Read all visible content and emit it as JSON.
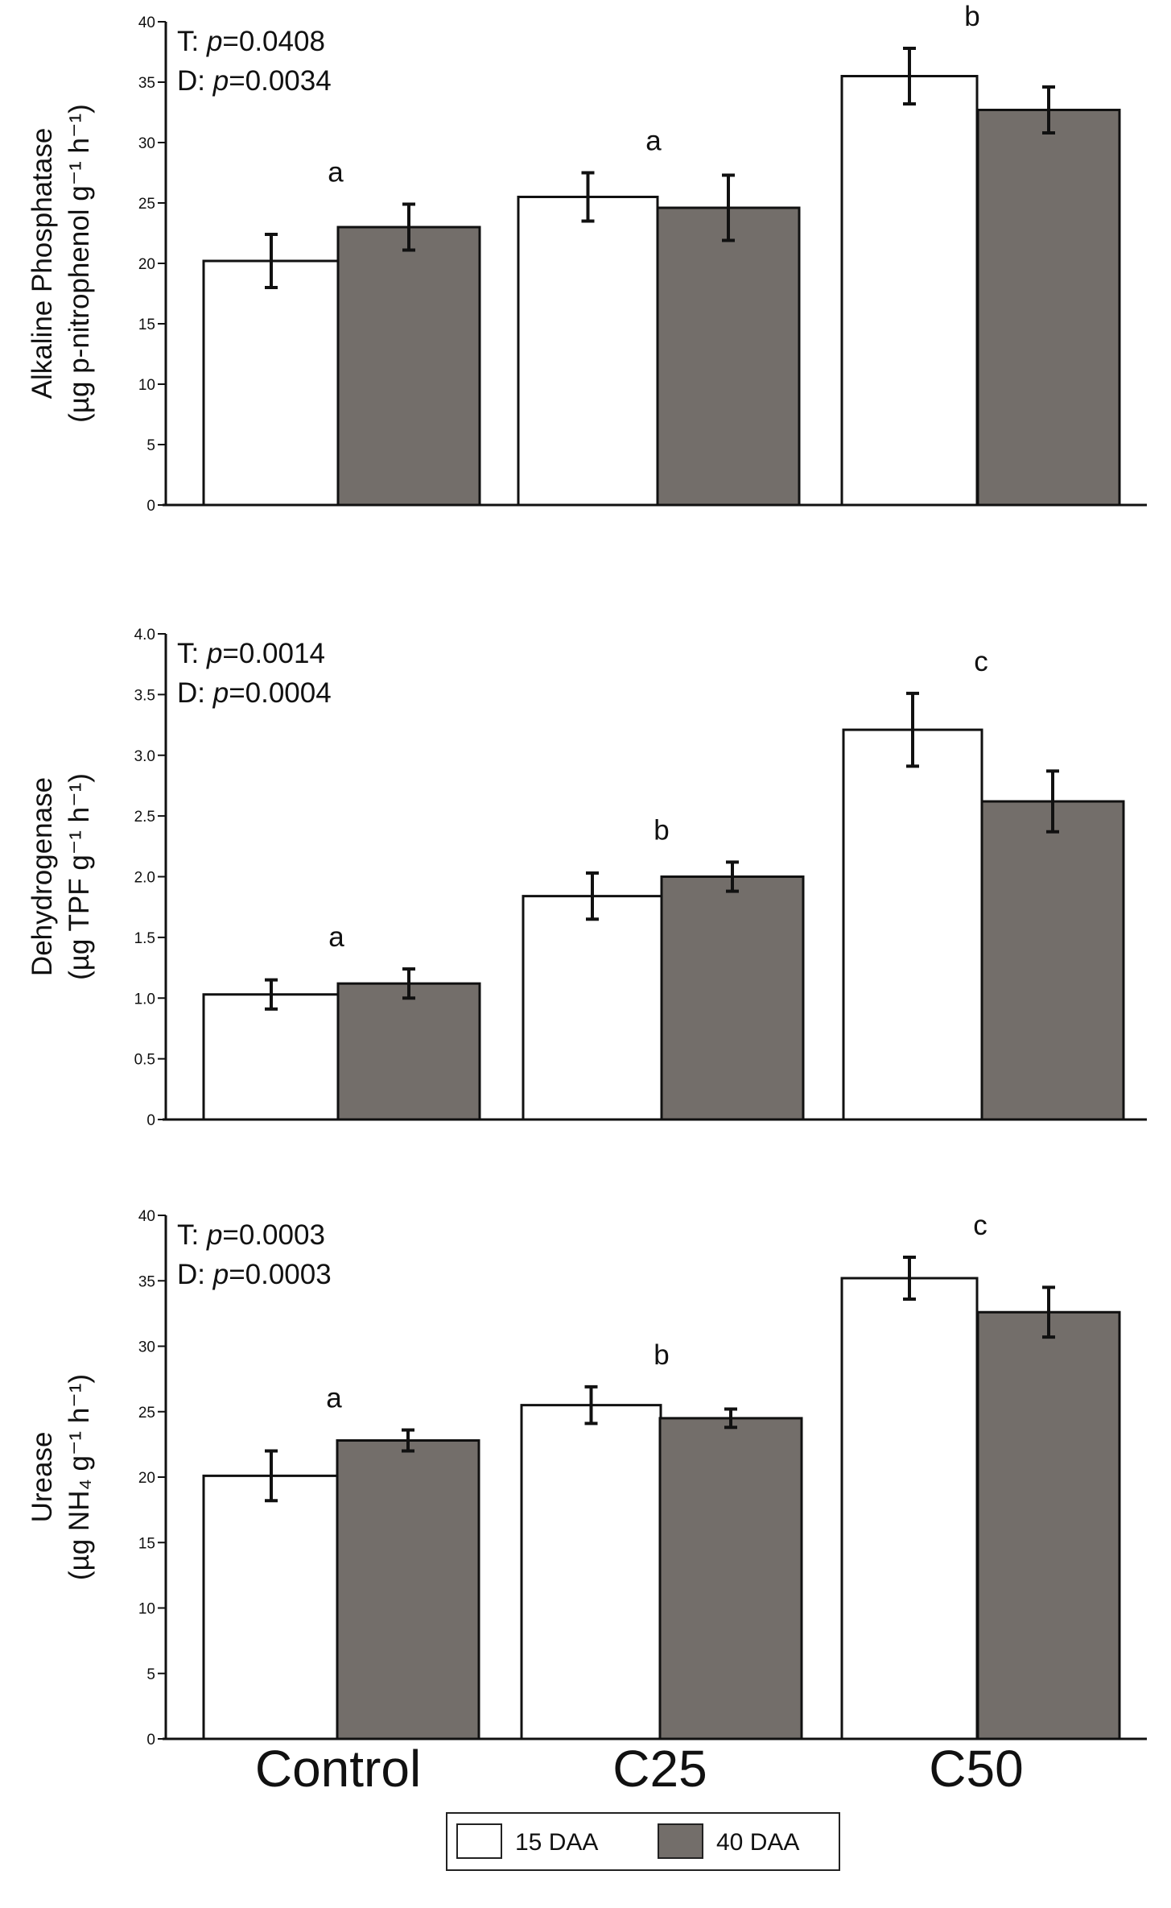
{
  "legend": [
    {
      "label": "15 DAA",
      "color": "#ffffff"
    },
    {
      "label": "40 DAA",
      "color": "#736e6a"
    }
  ],
  "categories": [
    "Control",
    "C25",
    "C50"
  ],
  "chart_data": [
    {
      "type": "bar",
      "title": "",
      "ylabel_line1": "Alkaline Phosphatase",
      "ylabel_line2": "(µg p-nitrophenol g⁻¹ h⁻¹)",
      "categories": [
        "Control",
        "C25",
        "C50"
      ],
      "ylim": [
        0,
        40
      ],
      "yticks": [
        0,
        5,
        10,
        15,
        20,
        25,
        30,
        35,
        40
      ],
      "ytick_labels": [
        "0",
        "5",
        "10",
        "15",
        "20",
        "25",
        "30",
        "35",
        "40"
      ],
      "series": [
        {
          "name": "15 DAA",
          "values": [
            20.2,
            25.5,
            35.5
          ],
          "errors": [
            2.2,
            2.0,
            2.3
          ]
        },
        {
          "name": "40 DAA",
          "values": [
            23.0,
            24.6,
            32.7
          ],
          "errors": [
            1.9,
            2.7,
            1.9
          ]
        }
      ],
      "letters": [
        "a",
        "a",
        "b"
      ],
      "stats": [
        {
          "factor": "T",
          "p": "0.0408"
        },
        {
          "factor": "D",
          "p": "0.0034"
        }
      ]
    },
    {
      "type": "bar",
      "title": "",
      "ylabel_line1": "Dehydrogenase",
      "ylabel_line2": "(µg TPF g⁻¹ h⁻¹)",
      "categories": [
        "Control",
        "C25",
        "C50"
      ],
      "ylim": [
        0,
        4.0
      ],
      "yticks": [
        0,
        0.5,
        1.0,
        1.5,
        2.0,
        2.5,
        3.0,
        3.5,
        4.0
      ],
      "ytick_labels": [
        "0",
        "0.5",
        "1.0",
        "1.5",
        "2.0",
        "2.5",
        "3.0",
        "3.5",
        "4.0"
      ],
      "series": [
        {
          "name": "15 DAA",
          "values": [
            1.03,
            1.84,
            3.21
          ],
          "errors": [
            0.12,
            0.19,
            0.3
          ]
        },
        {
          "name": "40 DAA",
          "values": [
            1.12,
            2.0,
            2.62
          ],
          "errors": [
            0.12,
            0.12,
            0.25
          ]
        }
      ],
      "letters": [
        "a",
        "b",
        "c"
      ],
      "stats": [
        {
          "factor": "T",
          "p": "0.0014"
        },
        {
          "factor": "D",
          "p": "0.0004"
        }
      ]
    },
    {
      "type": "bar",
      "title": "",
      "ylabel_line1": "Urease",
      "ylabel_line2": "(µg NH₄ g⁻¹ h⁻¹)",
      "categories": [
        "Control",
        "C25",
        "C50"
      ],
      "ylim": [
        0,
        40
      ],
      "yticks": [
        0,
        5,
        10,
        15,
        20,
        25,
        30,
        35,
        40
      ],
      "ytick_labels": [
        "0",
        "5",
        "10",
        "15",
        "20",
        "25",
        "30",
        "35",
        "40"
      ],
      "series": [
        {
          "name": "15 DAA",
          "values": [
            20.1,
            25.5,
            35.2
          ],
          "errors": [
            1.9,
            1.4,
            1.6
          ]
        },
        {
          "name": "40 DAA",
          "values": [
            22.8,
            24.5,
            32.6
          ],
          "errors": [
            0.8,
            0.7,
            1.9
          ]
        }
      ],
      "letters": [
        "a",
        "b",
        "c"
      ],
      "stats": [
        {
          "factor": "T",
          "p": "0.0003"
        },
        {
          "factor": "D",
          "p": "0.0003"
        }
      ]
    }
  ]
}
